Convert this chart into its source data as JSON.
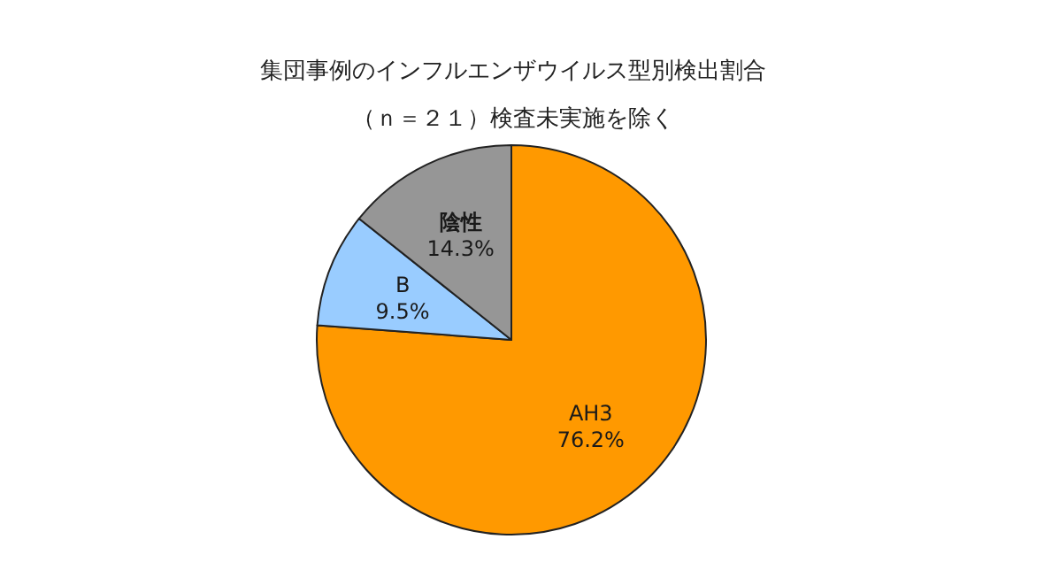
{
  "chart_data": {
    "type": "pie",
    "title": "集団事例のインフルエンザウイルス型別検出割合",
    "subtitle": "（ｎ＝２１）検査未実施を除く",
    "categories": [
      "AH3",
      "B",
      "陰性"
    ],
    "values": [
      76.2,
      9.5,
      14.3
    ],
    "colors": [
      "#ff9900",
      "#99ccff",
      "#969696"
    ],
    "value_labels": [
      "76.2%",
      "9.5%",
      "14.3%"
    ],
    "legend": false
  }
}
